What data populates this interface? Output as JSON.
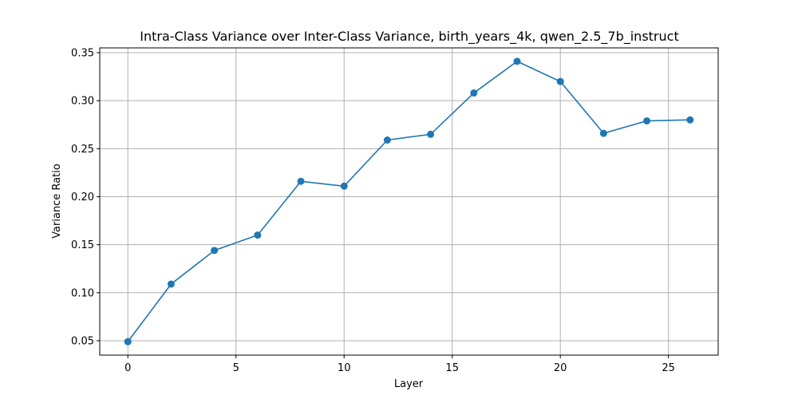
{
  "chart_data": {
    "type": "line",
    "title": "Intra-Class Variance over Inter-Class Variance, birth_years_4k, qwen_2.5_7b_instruct",
    "xlabel": "Layer",
    "ylabel": "Variance Ratio",
    "xlim": [
      -1.3,
      27.3
    ],
    "ylim": [
      0.035,
      0.355
    ],
    "xticks": [
      0,
      5,
      10,
      15,
      20,
      25
    ],
    "yticks": [
      0.05,
      0.1,
      0.15,
      0.2,
      0.25,
      0.3,
      0.35
    ],
    "xtick_labels": [
      "0",
      "5",
      "10",
      "15",
      "20",
      "25"
    ],
    "ytick_labels": [
      "0.05",
      "0.10",
      "0.15",
      "0.20",
      "0.25",
      "0.30",
      "0.35"
    ],
    "grid": true,
    "color": "#1f77b4",
    "series": [
      {
        "x": [
          0,
          2,
          4,
          6,
          8,
          10,
          12,
          14,
          16,
          18,
          20,
          22,
          24,
          26
        ],
        "values": [
          0.049,
          0.109,
          0.144,
          0.16,
          0.216,
          0.211,
          0.259,
          0.265,
          0.308,
          0.341,
          0.32,
          0.266,
          0.279,
          0.28
        ]
      }
    ]
  }
}
